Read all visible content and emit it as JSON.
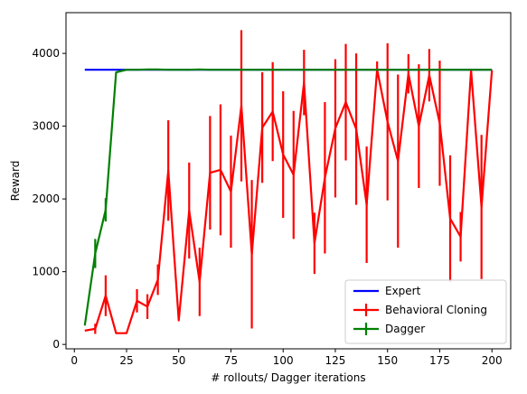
{
  "chart_data": {
    "type": "line",
    "title": "",
    "xlabel": "# rollouts/ Dagger iterations",
    "ylabel": "Reward",
    "xlim": [
      -4,
      209
    ],
    "ylim": [
      -60,
      4560
    ],
    "xticks": [
      0,
      25,
      50,
      75,
      100,
      125,
      150,
      175,
      200
    ],
    "yticks": [
      0,
      1000,
      2000,
      3000,
      4000
    ],
    "grid": false,
    "legend_position": "lower right",
    "series": [
      {
        "name": "Expert",
        "color": "#0000ff",
        "x": [
          5,
          200
        ],
        "y": [
          3775,
          3775
        ],
        "err": null
      },
      {
        "name": "Behavioral Cloning",
        "color": "#ff0000",
        "x": [
          5,
          10,
          15,
          20,
          25,
          30,
          35,
          40,
          45,
          50,
          55,
          60,
          65,
          70,
          75,
          80,
          85,
          90,
          95,
          100,
          105,
          110,
          115,
          120,
          125,
          130,
          135,
          140,
          145,
          150,
          155,
          160,
          165,
          170,
          175,
          180,
          185,
          190,
          195,
          200
        ],
        "y": [
          190,
          215,
          670,
          155,
          155,
          600,
          520,
          890,
          2390,
          330,
          1840,
          860,
          2360,
          2400,
          2100,
          3280,
          1240,
          2980,
          3200,
          2610,
          2330,
          3600,
          1390,
          2290,
          2970,
          3330,
          2960,
          1920,
          3780,
          3060,
          2520,
          3720,
          3000,
          3700,
          3040,
          1730,
          1480,
          3770,
          1890,
          3770
        ],
        "err": [
          0,
          70,
          280,
          0,
          0,
          160,
          170,
          210,
          690,
          0,
          660,
          470,
          780,
          900,
          770,
          1040,
          1020,
          760,
          680,
          870,
          880,
          450,
          420,
          1040,
          950,
          800,
          1040,
          800,
          110,
          1080,
          1190,
          270,
          850,
          360,
          860,
          870,
          340,
          0,
          990,
          0
        ]
      },
      {
        "name": "Dagger",
        "color": "#008000",
        "x": [
          5,
          10,
          15,
          20,
          25,
          30,
          35,
          40,
          45,
          50,
          55,
          60,
          65,
          70,
          75,
          80,
          85,
          90,
          95,
          100,
          105,
          110,
          115,
          120,
          125,
          130,
          135,
          140,
          145,
          150,
          155,
          160,
          165,
          170,
          175,
          180,
          185,
          190,
          195,
          200
        ],
        "y": [
          260,
          1250,
          1850,
          3740,
          3775,
          3775,
          3780,
          3780,
          3775,
          3775,
          3775,
          3780,
          3775,
          3775,
          3775,
          3775,
          3775,
          3775,
          3775,
          3775,
          3775,
          3775,
          3775,
          3775,
          3775,
          3775,
          3775,
          3775,
          3775,
          3775,
          3775,
          3775,
          3775,
          3775,
          3775,
          3775,
          3775,
          3775,
          3775,
          3775
        ],
        "err": [
          0,
          200,
          160,
          0,
          0,
          0,
          0,
          0,
          0,
          0,
          0,
          0,
          0,
          0,
          0,
          0,
          0,
          0,
          0,
          0,
          0,
          0,
          0,
          0,
          0,
          0,
          0,
          0,
          0,
          0,
          0,
          0,
          0,
          0,
          0,
          0,
          0,
          0,
          0,
          0
        ]
      }
    ]
  }
}
